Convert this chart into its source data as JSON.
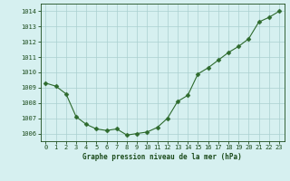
{
  "x": [
    0,
    1,
    2,
    3,
    4,
    5,
    6,
    7,
    8,
    9,
    10,
    11,
    12,
    13,
    14,
    15,
    16,
    17,
    18,
    19,
    20,
    21,
    22,
    23
  ],
  "y": [
    1009.3,
    1009.1,
    1008.6,
    1007.1,
    1006.6,
    1006.3,
    1006.2,
    1006.3,
    1005.9,
    1006.0,
    1006.1,
    1006.4,
    1007.0,
    1008.1,
    1008.5,
    1009.9,
    1010.3,
    1010.8,
    1011.3,
    1011.7,
    1012.2,
    1013.3,
    1013.6,
    1014.0
  ],
  "line_color": "#2d6a2d",
  "marker": "D",
  "marker_size": 2.5,
  "bg_color": "#d6f0f0",
  "grid_color": "#aacfcf",
  "title": "Graphe pression niveau de la mer (hPa)",
  "label_color": "#1a4a1a",
  "ylim": [
    1005.5,
    1014.5
  ],
  "yticks": [
    1006,
    1007,
    1008,
    1009,
    1010,
    1011,
    1012,
    1013,
    1014
  ],
  "ytick_labels": [
    "1006",
    "1007",
    "1008",
    "1009",
    "1010",
    "1011",
    "1012",
    "1013",
    "1014"
  ],
  "xlim": [
    -0.5,
    23.5
  ],
  "xticks": [
    0,
    1,
    2,
    3,
    4,
    5,
    6,
    7,
    8,
    9,
    10,
    11,
    12,
    13,
    14,
    15,
    16,
    17,
    18,
    19,
    20,
    21,
    22,
    23
  ],
  "xtick_labels": [
    "0",
    "1",
    "2",
    "3",
    "4",
    "5",
    "6",
    "7",
    "8",
    "9",
    "10",
    "11",
    "12",
    "13",
    "14",
    "15",
    "16",
    "17",
    "18",
    "19",
    "20",
    "21",
    "22",
    "23"
  ]
}
